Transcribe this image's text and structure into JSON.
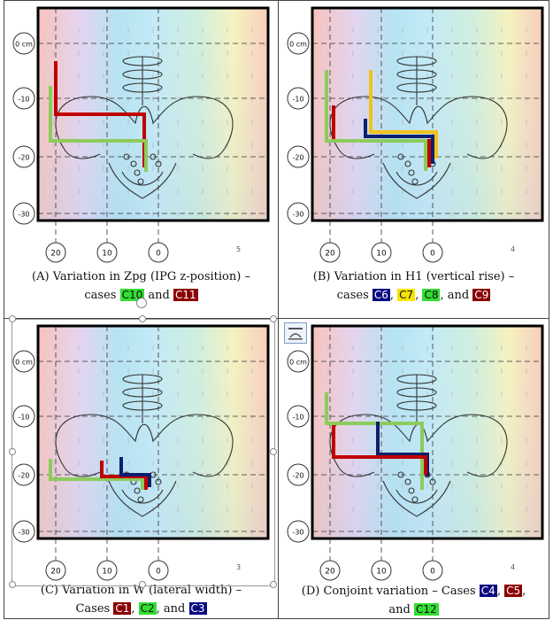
{
  "panels": [
    {
      "id": "A",
      "caption_line1": "(A) Variation in Zpg (IPG z-position) –",
      "caption_line2_pre": "cases",
      "cases": [
        {
          "label": "C10",
          "color": "green"
        },
        {
          "label": "C11",
          "color": "red"
        }
      ],
      "page_no": "5",
      "y_labels": [
        "0 cm",
        "-10",
        "-20",
        "-30"
      ],
      "x_labels": [
        "20",
        "10",
        "0"
      ]
    },
    {
      "id": "B",
      "caption_line1": "(B) Variation in H1 (vertical rise) –",
      "caption_line2_pre": "cases",
      "cases": [
        {
          "label": "C6",
          "color": "navy"
        },
        {
          "label": "C7",
          "color": "yellow"
        },
        {
          "label": "C8",
          "color": "green"
        },
        {
          "label": "C9",
          "color": "red"
        }
      ],
      "page_no": "4",
      "y_labels": [
        "0 cm",
        "-10",
        "-20",
        "-30"
      ],
      "x_labels": [
        "20",
        "10",
        "0"
      ]
    },
    {
      "id": "C",
      "caption_line1": "(C) Variation in W (lateral width) –",
      "caption_line2_pre": "Cases",
      "cases": [
        {
          "label": "C1",
          "color": "red"
        },
        {
          "label": "C2",
          "color": "green"
        },
        {
          "label": "C3",
          "color": "navy"
        }
      ],
      "page_no": "3",
      "y_labels": [
        "0 cm",
        "-10",
        "-20",
        "-30"
      ],
      "x_labels": [
        "20",
        "10",
        "0"
      ]
    },
    {
      "id": "D",
      "caption_line1": "(D) Conjoint variation – Cases",
      "caption_line2_pre": "and",
      "cases": [
        {
          "label": "C4",
          "color": "navy"
        },
        {
          "label": "C5",
          "color": "red"
        },
        {
          "label": "C12",
          "color": "green"
        }
      ],
      "page_no": "4",
      "y_labels": [
        "0 cm",
        "-10",
        "-20",
        "-30"
      ],
      "x_labels": [
        "20",
        "10",
        "0"
      ]
    }
  ],
  "colors": {
    "red": "#c00000",
    "green": "#8ccc5a",
    "navy": "#0a1f6e",
    "yellow": "#f2c21c",
    "frame": "#000000"
  }
}
